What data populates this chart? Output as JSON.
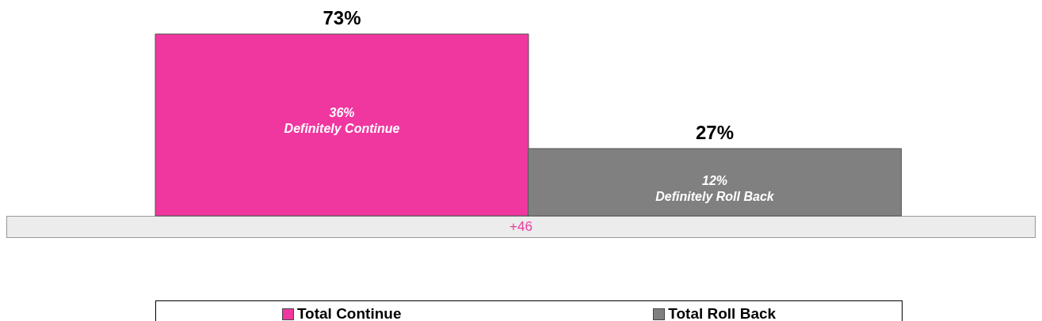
{
  "chart_data": {
    "type": "bar",
    "stacked": true,
    "categories": [
      null,
      null
    ],
    "series": [
      {
        "name": "Total Continue",
        "color": "#f0379f",
        "values": [
          73,
          null
        ],
        "value_labels": [
          "73%",
          null
        ]
      },
      {
        "name": "Total Roll Back",
        "color": "#808080",
        "values": [
          null,
          27
        ],
        "value_labels": [
          null,
          "27%"
        ]
      }
    ],
    "annotations": [
      "36%\nDefinitely Continue",
      "12%\nDefinitely Roll Back",
      "+46"
    ],
    "legend": "bottom"
  }
}
